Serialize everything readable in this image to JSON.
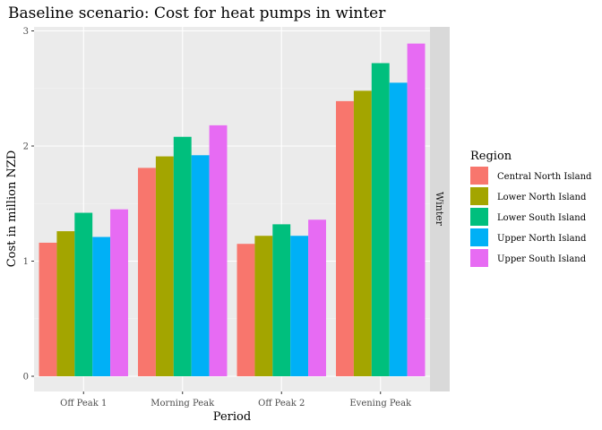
{
  "chart_data": {
    "type": "bar",
    "title": "Baseline scenario: Cost for heat pumps in winter",
    "xlabel": "Period",
    "ylabel": "Cost in million NZD",
    "ylim": [
      0,
      3
    ],
    "yticks": [
      0,
      1,
      2,
      3
    ],
    "categories": [
      "Off Peak 1",
      "Morning Peak",
      "Off Peak 2",
      "Evening Peak"
    ],
    "facet_label": "Winter",
    "legend_title": "Region",
    "legend_position": "right",
    "grid": true,
    "series": [
      {
        "name": "Central North Island",
        "color": "#F8766D",
        "values": [
          1.16,
          1.81,
          1.15,
          2.39
        ]
      },
      {
        "name": "Lower North Island",
        "color": "#A3A500",
        "values": [
          1.26,
          1.91,
          1.22,
          2.48
        ]
      },
      {
        "name": "Lower South Island",
        "color": "#00BF7D",
        "values": [
          1.42,
          2.08,
          1.32,
          2.72
        ]
      },
      {
        "name": "Upper North Island",
        "color": "#00B0F6",
        "values": [
          1.21,
          1.92,
          1.22,
          2.55
        ]
      },
      {
        "name": "Upper South Island",
        "color": "#E76BF3",
        "values": [
          1.45,
          2.18,
          1.36,
          2.89
        ]
      }
    ]
  }
}
